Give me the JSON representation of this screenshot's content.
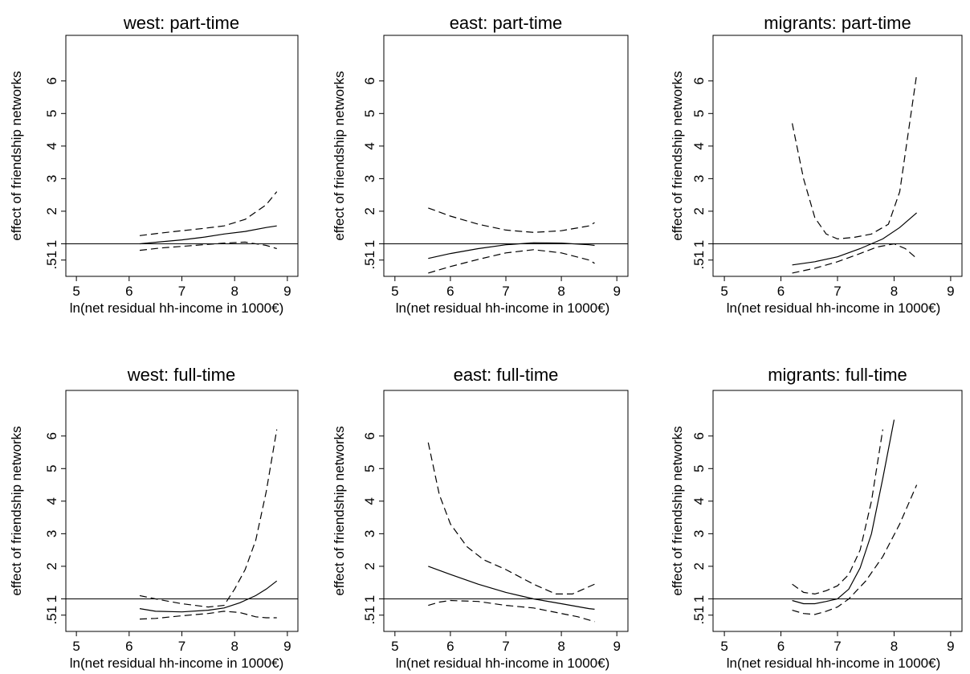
{
  "chart_data": [
    {
      "type": "line",
      "title": "west: part-time",
      "xlabel": "ln(net residual hh-income in 1000€)",
      "ylabel": "effect of friendship networks",
      "xlim": [
        4.8,
        9.2
      ],
      "ylim": [
        0,
        7.4
      ],
      "xticks": [
        "5",
        "6",
        "7",
        "8",
        "9"
      ],
      "yticks": [
        ".51",
        "1",
        "2",
        "3",
        "4",
        "5",
        "6"
      ],
      "reference_line": 1,
      "series": [
        {
          "style": "solid",
          "x": [
            6.2,
            6.6,
            7,
            7.4,
            7.8,
            8.2,
            8.6,
            8.8
          ],
          "y": [
            1.0,
            1.06,
            1.12,
            1.2,
            1.3,
            1.38,
            1.5,
            1.55
          ]
        },
        {
          "style": "dashed",
          "x": [
            6.2,
            6.6,
            7,
            7.4,
            7.8,
            8.2,
            8.6,
            8.8
          ],
          "y": [
            1.25,
            1.33,
            1.4,
            1.47,
            1.55,
            1.75,
            2.2,
            2.6
          ]
        },
        {
          "style": "dashed",
          "x": [
            6.2,
            6.6,
            7,
            7.4,
            7.8,
            8.2,
            8.6,
            8.8
          ],
          "y": [
            0.8,
            0.87,
            0.92,
            0.97,
            1.02,
            1.05,
            0.95,
            0.85
          ]
        }
      ]
    },
    {
      "type": "line",
      "title": "east: part-time",
      "xlabel": "ln(net residual hh-income in 1000€)",
      "ylabel": "effect of friendship networks",
      "xlim": [
        4.8,
        9.2
      ],
      "ylim": [
        0,
        7.4
      ],
      "xticks": [
        "5",
        "6",
        "7",
        "8",
        "9"
      ],
      "yticks": [
        ".51",
        "1",
        "2",
        "3",
        "4",
        "5",
        "6"
      ],
      "reference_line": 1,
      "series": [
        {
          "style": "solid",
          "x": [
            5.6,
            6,
            6.5,
            7,
            7.5,
            8,
            8.5,
            8.6
          ],
          "y": [
            0.55,
            0.7,
            0.85,
            0.97,
            1.03,
            1.02,
            0.97,
            0.95
          ]
        },
        {
          "style": "dashed",
          "x": [
            5.6,
            6,
            6.5,
            7,
            7.5,
            8,
            8.5,
            8.6
          ],
          "y": [
            2.1,
            1.85,
            1.6,
            1.42,
            1.35,
            1.4,
            1.55,
            1.65
          ]
        },
        {
          "style": "dashed",
          "x": [
            5.6,
            6,
            6.5,
            7,
            7.5,
            8,
            8.5,
            8.6
          ],
          "y": [
            0.1,
            0.3,
            0.52,
            0.72,
            0.82,
            0.72,
            0.5,
            0.4
          ]
        }
      ]
    },
    {
      "type": "line",
      "title": "migrants: part-time",
      "xlabel": "ln(net residual hh-income in 1000€)",
      "ylabel": "effect of friendship networks",
      "xlim": [
        4.8,
        9.2
      ],
      "ylim": [
        0,
        7.4
      ],
      "xticks": [
        "5",
        "6",
        "7",
        "8",
        "9"
      ],
      "yticks": [
        ".51",
        "1",
        "2",
        "3",
        "4",
        "5",
        "6"
      ],
      "reference_line": 1,
      "series": [
        {
          "style": "solid",
          "x": [
            6.2,
            6.6,
            7,
            7.4,
            7.8,
            8.1,
            8.4
          ],
          "y": [
            0.35,
            0.45,
            0.6,
            0.85,
            1.15,
            1.5,
            1.95
          ]
        },
        {
          "style": "dashed",
          "x": [
            6.2,
            6.4,
            6.6,
            6.8,
            7,
            7.3,
            7.6,
            7.9,
            8.1,
            8.4
          ],
          "y": [
            4.7,
            3.0,
            1.8,
            1.3,
            1.15,
            1.2,
            1.3,
            1.6,
            2.6,
            6.2
          ]
        },
        {
          "style": "dashed",
          "x": [
            6.2,
            6.6,
            7,
            7.4,
            7.7,
            8,
            8.2,
            8.4
          ],
          "y": [
            0.1,
            0.25,
            0.45,
            0.7,
            0.9,
            1.0,
            0.85,
            0.55
          ]
        }
      ]
    },
    {
      "type": "line",
      "title": "west: full-time",
      "xlabel": "ln(net residual hh-income in 1000€)",
      "ylabel": "effect of friendship networks",
      "xlim": [
        4.8,
        9.2
      ],
      "ylim": [
        0,
        7.4
      ],
      "xticks": [
        "5",
        "6",
        "7",
        "8",
        "9"
      ],
      "yticks": [
        ".51",
        "1",
        "2",
        "3",
        "4",
        "5",
        "6"
      ],
      "reference_line": 1,
      "series": [
        {
          "style": "solid",
          "x": [
            6.2,
            6.5,
            7,
            7.5,
            7.8,
            8.1,
            8.4,
            8.6,
            8.8
          ],
          "y": [
            0.7,
            0.62,
            0.6,
            0.65,
            0.72,
            0.88,
            1.1,
            1.3,
            1.55
          ]
        },
        {
          "style": "dashed",
          "x": [
            6.2,
            6.5,
            7,
            7.5,
            7.8,
            8.0,
            8.2,
            8.4,
            8.6,
            8.8
          ],
          "y": [
            1.1,
            1.0,
            0.85,
            0.75,
            0.8,
            1.3,
            1.9,
            2.8,
            4.3,
            6.2
          ]
        },
        {
          "style": "dashed",
          "x": [
            6.2,
            6.5,
            7,
            7.5,
            7.8,
            8.1,
            8.4,
            8.6,
            8.8
          ],
          "y": [
            0.38,
            0.4,
            0.48,
            0.55,
            0.62,
            0.58,
            0.45,
            0.42,
            0.42
          ]
        }
      ]
    },
    {
      "type": "line",
      "title": "east: full-time",
      "xlabel": "ln(net residual hh-income in 1000€)",
      "ylabel": "effect of friendship networks",
      "xlim": [
        4.8,
        9.2
      ],
      "ylim": [
        0,
        7.4
      ],
      "xticks": [
        "5",
        "6",
        "7",
        "8",
        "9"
      ],
      "yticks": [
        ".51",
        "1",
        "2",
        "3",
        "4",
        "5",
        "6"
      ],
      "reference_line": 1,
      "series": [
        {
          "style": "solid",
          "x": [
            5.6,
            6,
            6.5,
            7,
            7.5,
            8,
            8.5,
            8.6
          ],
          "y": [
            2.0,
            1.75,
            1.45,
            1.2,
            1.0,
            0.85,
            0.7,
            0.68
          ]
        },
        {
          "style": "dashed",
          "x": [
            5.6,
            5.8,
            6,
            6.3,
            6.6,
            7,
            7.5,
            7.9,
            8.2,
            8.6
          ],
          "y": [
            5.8,
            4.2,
            3.3,
            2.6,
            2.2,
            1.9,
            1.45,
            1.15,
            1.15,
            1.45
          ]
        },
        {
          "style": "dashed",
          "x": [
            5.6,
            5.8,
            6,
            6.5,
            7,
            7.5,
            8,
            8.3,
            8.6
          ],
          "y": [
            0.8,
            0.9,
            0.95,
            0.92,
            0.8,
            0.72,
            0.55,
            0.45,
            0.3
          ]
        }
      ]
    },
    {
      "type": "line",
      "title": "migrants: full-time",
      "xlabel": "ln(net residual hh-income in 1000€)",
      "ylabel": "effect of friendship networks",
      "xlim": [
        4.8,
        9.2
      ],
      "ylim": [
        0,
        7.4
      ],
      "xticks": [
        "5",
        "6",
        "7",
        "8",
        "9"
      ],
      "yticks": [
        ".51",
        "1",
        "2",
        "3",
        "4",
        "5",
        "6"
      ],
      "reference_line": 1,
      "series": [
        {
          "style": "solid",
          "x": [
            6.2,
            6.4,
            6.6,
            6.8,
            7.0,
            7.2,
            7.4,
            7.6,
            7.8,
            8.0
          ],
          "y": [
            0.95,
            0.85,
            0.85,
            0.92,
            1.0,
            1.3,
            1.95,
            3.0,
            4.7,
            6.5
          ]
        },
        {
          "style": "dashed",
          "x": [
            6.2,
            6.4,
            6.6,
            6.8,
            7.0,
            7.2,
            7.4,
            7.6,
            7.8
          ],
          "y": [
            1.45,
            1.2,
            1.15,
            1.25,
            1.4,
            1.75,
            2.5,
            4.0,
            6.2
          ]
        },
        {
          "style": "dashed",
          "x": [
            6.2,
            6.4,
            6.6,
            6.8,
            7.0,
            7.2,
            7.5,
            7.8,
            8.1,
            8.4
          ],
          "y": [
            0.65,
            0.55,
            0.52,
            0.62,
            0.75,
            1.0,
            1.55,
            2.3,
            3.3,
            4.5
          ]
        }
      ]
    }
  ]
}
